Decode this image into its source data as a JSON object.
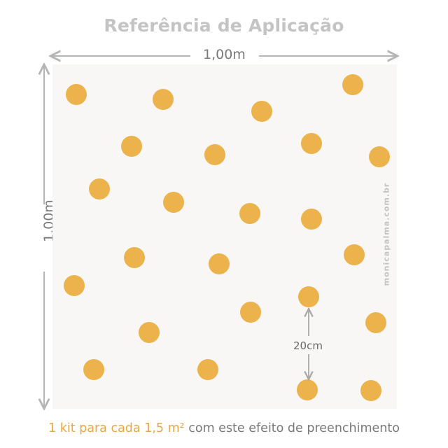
{
  "title": "Referência de Aplicação",
  "width_label": "1,00m",
  "height_label": "1,00m",
  "spacing_label": "20cm",
  "watermark": "monicapalma.com.br",
  "footer": {
    "highlight": "1 kit para cada 1,5 m²",
    "rest": " com este efeito de preenchimento"
  },
  "colors": {
    "dot": "#ecb24c",
    "accent": "#eda645",
    "panel": "#f8f7f5",
    "lines": "#b5b5b5"
  }
}
